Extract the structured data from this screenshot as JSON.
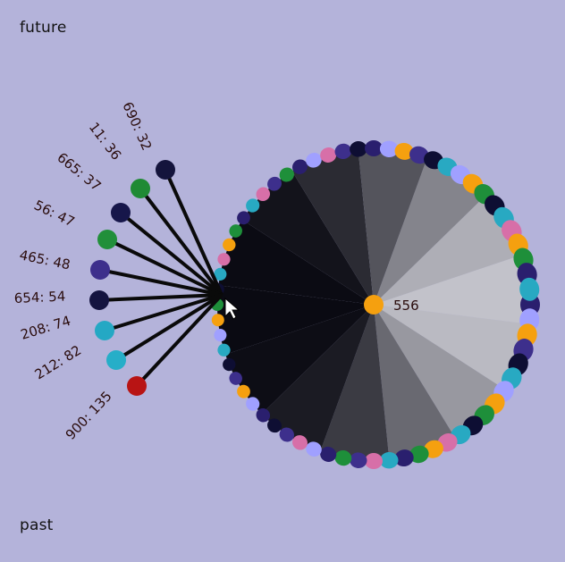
{
  "labels": {
    "future": "future",
    "past": "past"
  },
  "center": {
    "label": "556",
    "color": "#f5a00f"
  },
  "nodes": [
    {
      "label": "690: 32",
      "color": "#14143c"
    },
    {
      "label": "11: 36",
      "color": "#1f8a34"
    },
    {
      "label": "665: 37",
      "color": "#16164a"
    },
    {
      "label": "56: 47",
      "color": "#218f3a"
    },
    {
      "label": "465: 48",
      "color": "#3d2f8c"
    },
    {
      "label": "654: 54",
      "color": "#141440"
    },
    {
      "label": "208: 74",
      "color": "#24a8c4"
    },
    {
      "label": "212: 82",
      "color": "#26aec8"
    },
    {
      "label": "900: 135",
      "color": "#b81414"
    }
  ],
  "palette": [
    "#2a1f6e",
    "#d76fa8",
    "#1e8f3a",
    "#28a9c2",
    "#f5a00f",
    "#0e0e33",
    "#a0a0ff",
    "#3d2f8c"
  ]
}
